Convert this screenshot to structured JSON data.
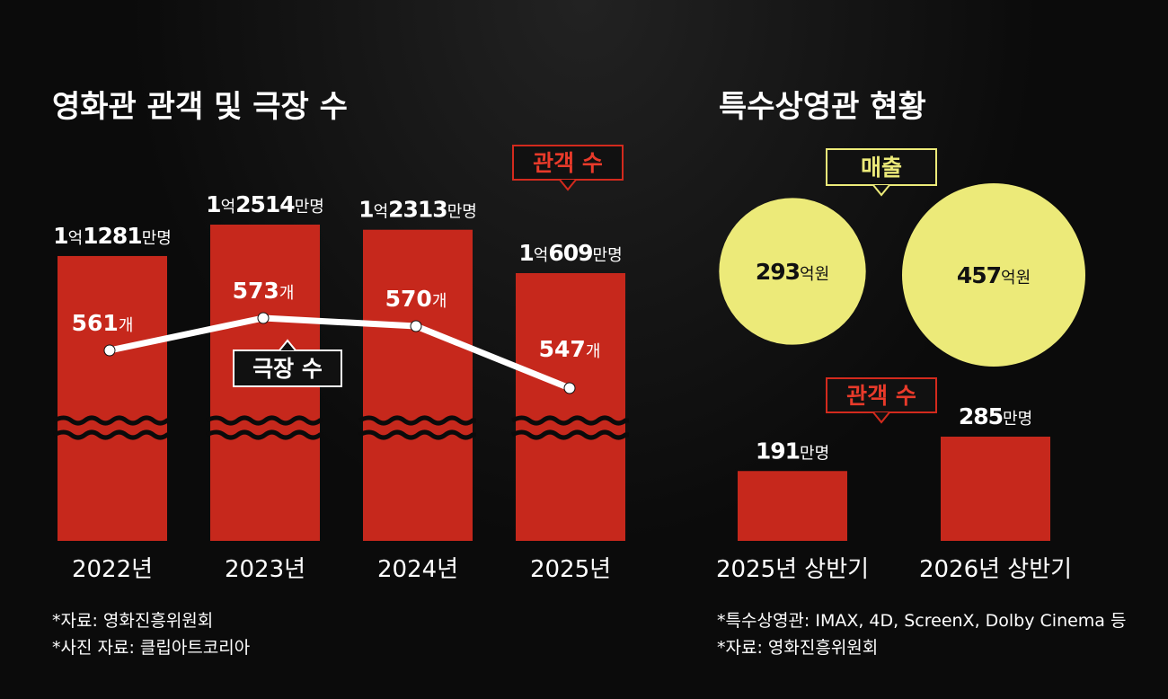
{
  "left_panel": {
    "title": "영화관 관객 및 극장 수",
    "tag_audience": "관객 수",
    "tag_theaters": "극장 수",
    "notes": [
      "*자료: 영화진흥위원회",
      "*사진 자료: 클립아트코리아"
    ]
  },
  "right_panel": {
    "title": "특수상영관 현황",
    "tag_sales": "매출",
    "tag_audience": "관객 수",
    "notes": [
      "*특수상영관: IMAX, 4D, ScreenX, Dolby Cinema 등",
      "*자료: 영화진흥위원회"
    ]
  },
  "colors": {
    "bar": "#c6281c",
    "circle": "#ecea79",
    "line": "#ffffff",
    "tag_red_border": "#d32a1d",
    "tag_yellow_border": "#ecea79"
  },
  "chart_data": [
    {
      "type": "bar",
      "title": "영화관 관객 및 극장 수",
      "categories": [
        "2022년",
        "2023년",
        "2024년",
        "2025년"
      ],
      "series": [
        {
          "name": "관객 수",
          "values": [
            112810000,
            125140000,
            123130000,
            106090000
          ],
          "labels": [
            {
              "head": "1",
              "unit1": "억",
              "num": "1281",
              "unit2": "만명"
            },
            {
              "head": "1",
              "unit1": "억",
              "num": "2514",
              "unit2": "만명"
            },
            {
              "head": "1",
              "unit1": "억",
              "num": "2313",
              "unit2": "만명"
            },
            {
              "head": "1",
              "unit1": "억",
              "num": "609",
              "unit2": "만명"
            }
          ],
          "axis_break": true
        },
        {
          "name": "극장 수",
          "type": "line",
          "values": [
            561,
            573,
            570,
            547
          ],
          "unit": "개"
        }
      ]
    },
    {
      "type": "bubble",
      "name": "매출",
      "categories": [
        "2025년 상반기",
        "2026년 상반기"
      ],
      "values": [
        293,
        457
      ],
      "unit": "억원"
    },
    {
      "type": "bar",
      "name": "관객 수",
      "categories": [
        "2025년 상반기",
        "2026년 상반기"
      ],
      "values": [
        191,
        285
      ],
      "unit": "만명"
    }
  ]
}
